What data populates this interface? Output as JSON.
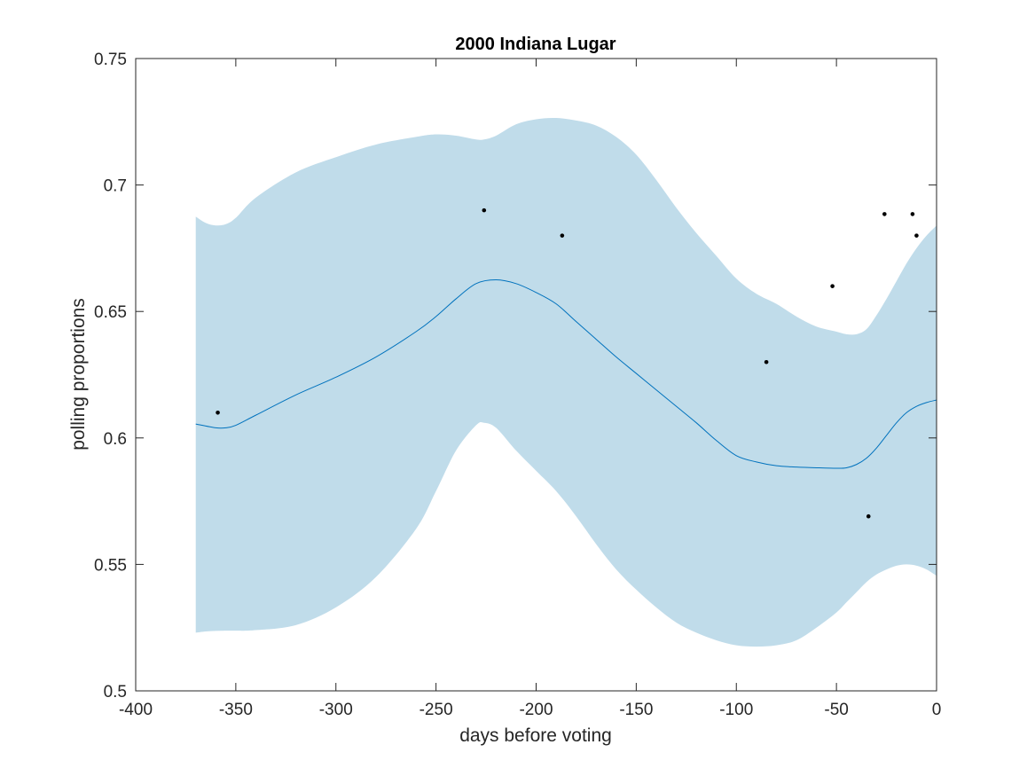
{
  "chart_data": {
    "type": "line",
    "title": "2000 Indiana Lugar",
    "xlabel": "days before voting",
    "ylabel": "polling proportions",
    "xlim": [
      -400,
      0
    ],
    "ylim": [
      0.5,
      0.75
    ],
    "x_ticks": [
      -400,
      -350,
      -300,
      -250,
      -200,
      -150,
      -100,
      -50,
      0
    ],
    "x_tick_labels": [
      "-400",
      "-350",
      "-300",
      "-250",
      "-200",
      "-150",
      "-100",
      "-50",
      "0"
    ],
    "y_ticks": [
      0.5,
      0.55,
      0.6,
      0.65,
      0.7,
      0.75
    ],
    "y_tick_labels": [
      "0.5",
      "0.55",
      "0.6",
      "0.65",
      "0.7",
      "0.75"
    ],
    "grid": false,
    "legend": "none",
    "colors": {
      "band": "#c0dcea",
      "line": "#0072bd",
      "points": "#000000",
      "axes": "#262626"
    },
    "band": {
      "x": [
        -370,
        -365,
        -360,
        -355,
        -350,
        -340,
        -320,
        -300,
        -280,
        -260,
        -250,
        -240,
        -230,
        -226,
        -220,
        -210,
        -200,
        -190,
        -180,
        -170,
        -160,
        -150,
        -140,
        -130,
        -120,
        -110,
        -100,
        -90,
        -80,
        -70,
        -60,
        -50,
        -45,
        -40,
        -35,
        -30,
        -25,
        -20,
        -15,
        -10,
        -5,
        0
      ],
      "upper": [
        0.6875,
        0.685,
        0.684,
        0.6845,
        0.687,
        0.695,
        0.705,
        0.711,
        0.716,
        0.719,
        0.72,
        0.7195,
        0.718,
        0.718,
        0.7195,
        0.724,
        0.726,
        0.7265,
        0.7255,
        0.7235,
        0.719,
        0.712,
        0.702,
        0.691,
        0.681,
        0.672,
        0.663,
        0.657,
        0.653,
        0.648,
        0.644,
        0.642,
        0.641,
        0.641,
        0.643,
        0.6485,
        0.655,
        0.662,
        0.669,
        0.675,
        0.68,
        0.684
      ],
      "lower": [
        0.523,
        0.5235,
        0.5237,
        0.5238,
        0.5238,
        0.524,
        0.526,
        0.533,
        0.545,
        0.564,
        0.579,
        0.595,
        0.605,
        0.606,
        0.604,
        0.595,
        0.587,
        0.579,
        0.569,
        0.558,
        0.548,
        0.54,
        0.533,
        0.527,
        0.523,
        0.52,
        0.518,
        0.5175,
        0.518,
        0.52,
        0.525,
        0.531,
        0.535,
        0.539,
        0.543,
        0.546,
        0.548,
        0.5495,
        0.55,
        0.5495,
        0.548,
        0.5455
      ]
    },
    "series": [
      {
        "x": [
          -370,
          -360,
          -355,
          -350,
          -340,
          -320,
          -300,
          -280,
          -260,
          -250,
          -240,
          -230,
          -220,
          -210,
          -200,
          -190,
          -180,
          -170,
          -160,
          -150,
          -140,
          -130,
          -120,
          -110,
          -100,
          -90,
          -80,
          -70,
          -60,
          -50,
          -45,
          -40,
          -35,
          -30,
          -25,
          -20,
          -15,
          -10,
          -5,
          0
        ],
        "values": [
          0.6055,
          0.604,
          0.604,
          0.605,
          0.609,
          0.617,
          0.624,
          0.632,
          0.642,
          0.648,
          0.655,
          0.661,
          0.6625,
          0.661,
          0.6575,
          0.653,
          0.646,
          0.639,
          0.632,
          0.6255,
          0.619,
          0.6125,
          0.606,
          0.599,
          0.593,
          0.5905,
          0.589,
          0.5885,
          0.5882,
          0.588,
          0.5882,
          0.5895,
          0.592,
          0.596,
          0.601,
          0.606,
          0.61,
          0.6125,
          0.614,
          0.615
        ]
      }
    ],
    "points": {
      "x": [
        -359,
        -226,
        -187,
        -85,
        -52,
        -34,
        -26,
        -12,
        -10
      ],
      "y": [
        0.61,
        0.69,
        0.68,
        0.63,
        0.66,
        0.569,
        0.6885,
        0.6885,
        0.68
      ]
    }
  }
}
